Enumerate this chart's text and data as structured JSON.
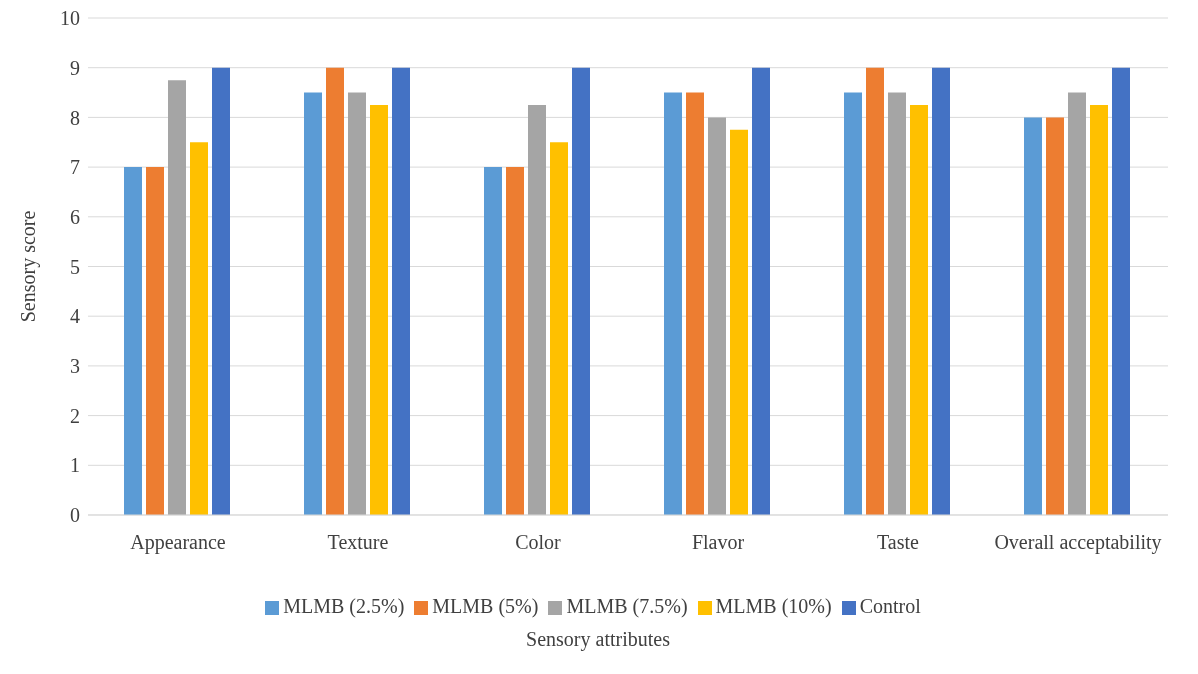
{
  "chart_data": {
    "type": "bar",
    "xlabel": "Sensory attributes",
    "ylabel": "Sensory score",
    "categories": [
      "Appearance",
      "Texture",
      "Color",
      "Flavor",
      "Taste",
      "Overall acceptability"
    ],
    "series": [
      {
        "name": "MLMB (2.5%)",
        "color": "#5b9bd5",
        "values": [
          7,
          8.5,
          7,
          8.5,
          8.5,
          8
        ]
      },
      {
        "name": "MLMB (5%)",
        "color": "#ed7d31",
        "values": [
          7,
          9,
          7,
          8.5,
          9,
          8
        ]
      },
      {
        "name": "MLMB (7.5%)",
        "color": "#a5a5a5",
        "values": [
          8.75,
          8.5,
          8.25,
          8,
          8.5,
          8.5
        ]
      },
      {
        "name": "MLMB (10%)",
        "color": "#ffc000",
        "values": [
          7.5,
          8.25,
          7.5,
          7.75,
          8.25,
          8.25
        ]
      },
      {
        "name": "Control",
        "color": "#4472c4",
        "values": [
          9,
          9,
          9,
          9,
          9,
          9
        ]
      }
    ],
    "ylim": [
      0,
      10
    ],
    "yticks": [
      0,
      1,
      2,
      3,
      4,
      5,
      6,
      7,
      8,
      9,
      10
    ],
    "grid": "y",
    "legend": "bottom"
  }
}
